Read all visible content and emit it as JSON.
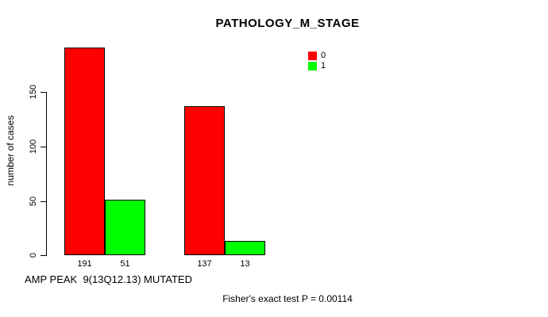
{
  "title": "PATHOLOGY_M_STAGE",
  "legend": {
    "items": [
      {
        "label": "0",
        "color": "#ff0000"
      },
      {
        "label": "1",
        "color": "#00ff00"
      }
    ]
  },
  "y_axis": {
    "label": "number of cases",
    "ticks": [
      "0",
      "50",
      "100",
      "150"
    ]
  },
  "x_axis": {
    "label": "AMP PEAK  9(13Q12.13) MUTATED"
  },
  "footer_note": "Fisher's exact test P = 0.00114",
  "chart_data": {
    "type": "bar",
    "title": "PATHOLOGY_M_STAGE",
    "xlabel": "AMP PEAK  9(13Q12.13) MUTATED",
    "ylabel": "number of cases",
    "yticks": [
      0,
      50,
      100,
      150
    ],
    "ylim": [
      0,
      200
    ],
    "grid": false,
    "legend_position": "upper-right",
    "categories": [
      "",
      ""
    ],
    "series": [
      {
        "name": "0",
        "color": "#ff0000",
        "values": [
          191,
          137
        ]
      },
      {
        "name": "1",
        "color": "#00ff00",
        "values": [
          51,
          13
        ]
      }
    ],
    "bar_value_labels": [
      "191",
      "51",
      "137",
      "13"
    ],
    "annotation": "Fisher's exact test P = 0.00114"
  }
}
